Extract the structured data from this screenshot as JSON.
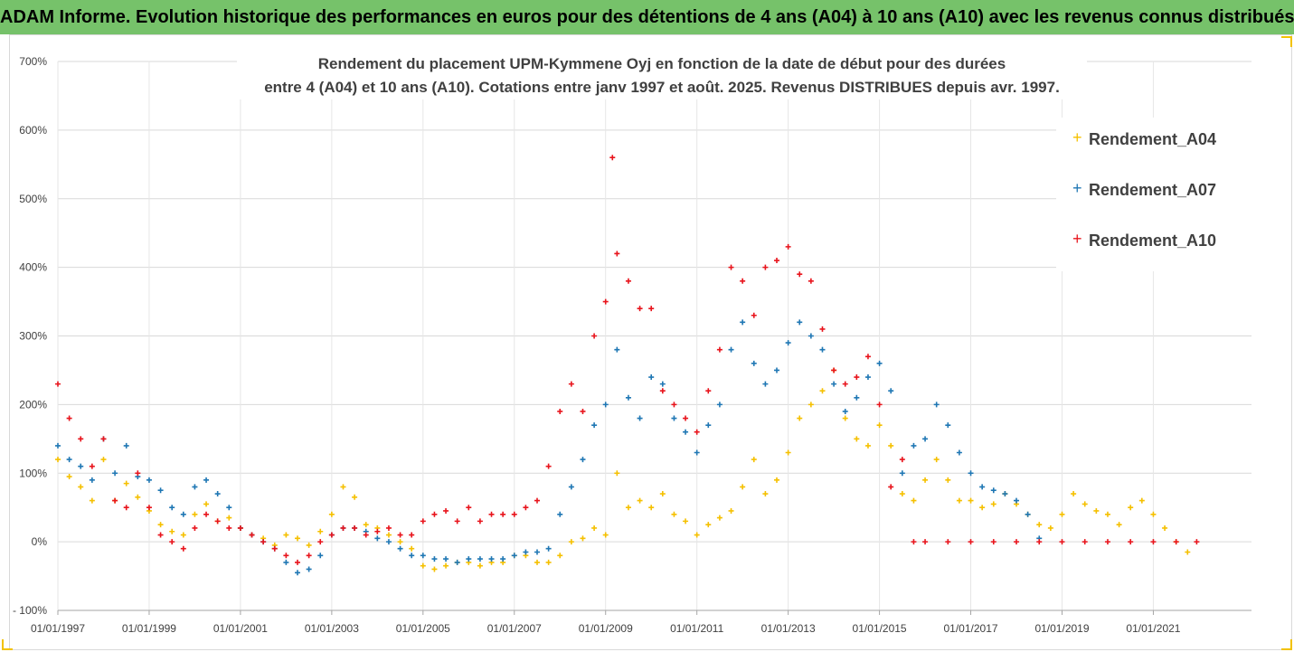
{
  "banner": "ADAM Informe. Evolution historique des performances en euros pour des détentions de 4 ans (A04) à 10 ans (A10) avec les revenus connus distribués",
  "chart_data": {
    "type": "scatter",
    "title_line1": "Rendement du placement UPM-Kymmene Oyj en fonction de la date de début pour des durées",
    "title_line2": "entre 4 (A04) et 10 ans (A10). Cotations entre janv 1997 et août. 2025. Revenus DISTRIBUES depuis avr. 1997.",
    "xlabel": "",
    "ylabel": "",
    "x_range": [
      1997.0,
      2022.0
    ],
    "ylim": [
      -100,
      700
    ],
    "y_ticks": [
      "- 100%",
      "0%",
      "100%",
      "200%",
      "300%",
      "400%",
      "500%",
      "600%",
      "700%"
    ],
    "x_ticks": [
      "01/01/1997",
      "01/01/1999",
      "01/01/2001",
      "01/01/2003",
      "01/01/2005",
      "01/01/2007",
      "01/01/2009",
      "01/01/2011",
      "01/01/2013",
      "01/01/2015",
      "01/01/2017",
      "01/01/2019",
      "01/01/2021"
    ],
    "grid": true,
    "legend_position": "right",
    "series": [
      {
        "name": "Rendement_A04",
        "color": "#f5c000",
        "x": [
          1997.0,
          1997.25,
          1997.5,
          1997.75,
          1998.0,
          1998.25,
          1998.5,
          1998.75,
          1999.0,
          1999.25,
          1999.5,
          1999.75,
          2000.0,
          2000.25,
          2000.5,
          2000.75,
          2001.0,
          2001.25,
          2001.5,
          2001.75,
          2002.0,
          2002.25,
          2002.5,
          2002.75,
          2003.0,
          2003.25,
          2003.5,
          2003.75,
          2004.0,
          2004.25,
          2004.5,
          2004.75,
          2005.0,
          2005.25,
          2005.5,
          2005.75,
          2006.0,
          2006.25,
          2006.5,
          2006.75,
          2007.0,
          2007.25,
          2007.5,
          2007.75,
          2008.0,
          2008.25,
          2008.5,
          2008.75,
          2009.0,
          2009.25,
          2009.5,
          2009.75,
          2010.0,
          2010.25,
          2010.5,
          2010.75,
          2011.0,
          2011.25,
          2011.5,
          2011.75,
          2012.0,
          2012.25,
          2012.5,
          2012.75,
          2013.0,
          2013.25,
          2013.5,
          2013.75,
          2014.0,
          2014.25,
          2014.5,
          2014.75,
          2015.0,
          2015.25,
          2015.5,
          2015.75,
          2016.0,
          2016.25,
          2016.5,
          2016.75,
          2017.0,
          2017.25,
          2017.5,
          2017.75,
          2018.0,
          2018.25,
          2018.5,
          2018.75,
          2019.0,
          2019.25,
          2019.5,
          2019.75,
          2020.0,
          2020.25,
          2020.5,
          2020.75,
          2021.0,
          2021.25,
          2021.5,
          2021.75
        ],
        "y": [
          120,
          95,
          80,
          60,
          120,
          60,
          85,
          65,
          45,
          25,
          15,
          10,
          40,
          55,
          30,
          35,
          20,
          10,
          5,
          -5,
          10,
          5,
          -5,
          15,
          40,
          80,
          65,
          25,
          20,
          10,
          0,
          -10,
          -35,
          -40,
          -35,
          -30,
          -30,
          -35,
          -30,
          -30,
          -20,
          -20,
          -30,
          -30,
          -20,
          0,
          5,
          20,
          10,
          100,
          50,
          60,
          50,
          70,
          40,
          30,
          10,
          25,
          35,
          45,
          80,
          120,
          70,
          90,
          130,
          180,
          200,
          220,
          250,
          180,
          150,
          140,
          170,
          140,
          70,
          60,
          90,
          120,
          90,
          60,
          60,
          50,
          55,
          70,
          55,
          40,
          25,
          20,
          40,
          70,
          55,
          45,
          40,
          25,
          50,
          60,
          40,
          20,
          0,
          -15
        ]
      },
      {
        "name": "Rendement_A07",
        "color": "#1f77b4",
        "x": [
          1997.0,
          1997.25,
          1997.5,
          1997.75,
          1998.0,
          1998.25,
          1998.5,
          1998.75,
          1999.0,
          1999.25,
          1999.5,
          1999.75,
          2000.0,
          2000.25,
          2000.5,
          2000.75,
          2001.0,
          2001.25,
          2001.5,
          2001.75,
          2002.0,
          2002.25,
          2002.5,
          2002.75,
          2003.0,
          2003.25,
          2003.5,
          2003.75,
          2004.0,
          2004.25,
          2004.5,
          2004.75,
          2005.0,
          2005.25,
          2005.5,
          2005.75,
          2006.0,
          2006.25,
          2006.5,
          2006.75,
          2007.0,
          2007.25,
          2007.5,
          2007.75,
          2008.0,
          2008.25,
          2008.5,
          2008.75,
          2009.0,
          2009.25,
          2009.5,
          2009.75,
          2010.0,
          2010.25,
          2010.5,
          2010.75,
          2011.0,
          2011.25,
          2011.5,
          2011.75,
          2012.0,
          2012.25,
          2012.5,
          2012.75,
          2013.0,
          2013.25,
          2013.5,
          2013.75,
          2014.0,
          2014.25,
          2014.5,
          2014.75,
          2015.0,
          2015.25,
          2015.5,
          2015.75,
          2016.0,
          2016.25,
          2016.5,
          2016.75,
          2017.0,
          2017.25,
          2017.5,
          2017.75,
          2018.0,
          2018.25,
          2018.5
        ],
        "y": [
          140,
          120,
          110,
          90,
          150,
          100,
          140,
          95,
          90,
          75,
          50,
          40,
          80,
          90,
          70,
          50,
          20,
          10,
          0,
          -10,
          -30,
          -45,
          -40,
          -20,
          10,
          20,
          20,
          15,
          5,
          0,
          -10,
          -20,
          -20,
          -25,
          -25,
          -30,
          -25,
          -25,
          -25,
          -25,
          -20,
          -15,
          -15,
          -10,
          40,
          80,
          120,
          170,
          200,
          280,
          210,
          180,
          240,
          230,
          180,
          160,
          130,
          170,
          200,
          280,
          320,
          260,
          230,
          250,
          290,
          320,
          300,
          280,
          230,
          190,
          210,
          240,
          260,
          220,
          100,
          140,
          150,
          200,
          170,
          130,
          100,
          80,
          75,
          70,
          60,
          40,
          5
        ]
      },
      {
        "name": "Rendement_A10",
        "color": "#e8141c",
        "x": [
          1997.0,
          1997.25,
          1997.5,
          1997.75,
          1998.0,
          1998.25,
          1998.5,
          1998.75,
          1999.0,
          1999.25,
          1999.5,
          1999.75,
          2000.0,
          2000.25,
          2000.5,
          2000.75,
          2001.0,
          2001.25,
          2001.5,
          2001.75,
          2002.0,
          2002.25,
          2002.5,
          2002.75,
          2003.0,
          2003.25,
          2003.5,
          2003.75,
          2004.0,
          2004.25,
          2004.5,
          2004.75,
          2005.0,
          2005.25,
          2005.5,
          2005.75,
          2006.0,
          2006.25,
          2006.5,
          2006.75,
          2007.0,
          2007.25,
          2007.5,
          2007.75,
          2008.0,
          2008.25,
          2008.5,
          2008.75,
          2009.0,
          2009.15,
          2009.25,
          2009.5,
          2009.75,
          2010.0,
          2010.25,
          2010.5,
          2010.75,
          2011.0,
          2011.25,
          2011.5,
          2011.75,
          2012.0,
          2012.25,
          2012.5,
          2012.75,
          2013.0,
          2013.25,
          2013.5,
          2013.75,
          2014.0,
          2014.25,
          2014.5,
          2014.75,
          2015.0,
          2015.25,
          2015.5,
          2015.75,
          2016.0,
          2016.5,
          2017.0,
          2017.5,
          2018.0,
          2018.5,
          2019.0,
          2019.5,
          2020.0,
          2020.5,
          2021.0,
          2021.5,
          2021.95
        ],
        "y": [
          230,
          180,
          150,
          110,
          150,
          60,
          50,
          100,
          50,
          10,
          0,
          -10,
          20,
          40,
          30,
          20,
          20,
          10,
          0,
          -10,
          -20,
          -30,
          -20,
          0,
          10,
          20,
          20,
          10,
          15,
          20,
          10,
          10,
          30,
          40,
          45,
          30,
          50,
          30,
          40,
          40,
          40,
          50,
          60,
          110,
          190,
          230,
          190,
          300,
          350,
          560,
          420,
          380,
          340,
          340,
          220,
          200,
          180,
          160,
          220,
          280,
          400,
          380,
          330,
          400,
          410,
          430,
          390,
          380,
          310,
          250,
          230,
          240,
          270,
          200,
          80,
          120,
          0,
          0,
          0,
          0,
          0,
          0,
          0,
          0,
          0,
          0,
          0,
          0,
          0,
          0
        ]
      }
    ]
  }
}
